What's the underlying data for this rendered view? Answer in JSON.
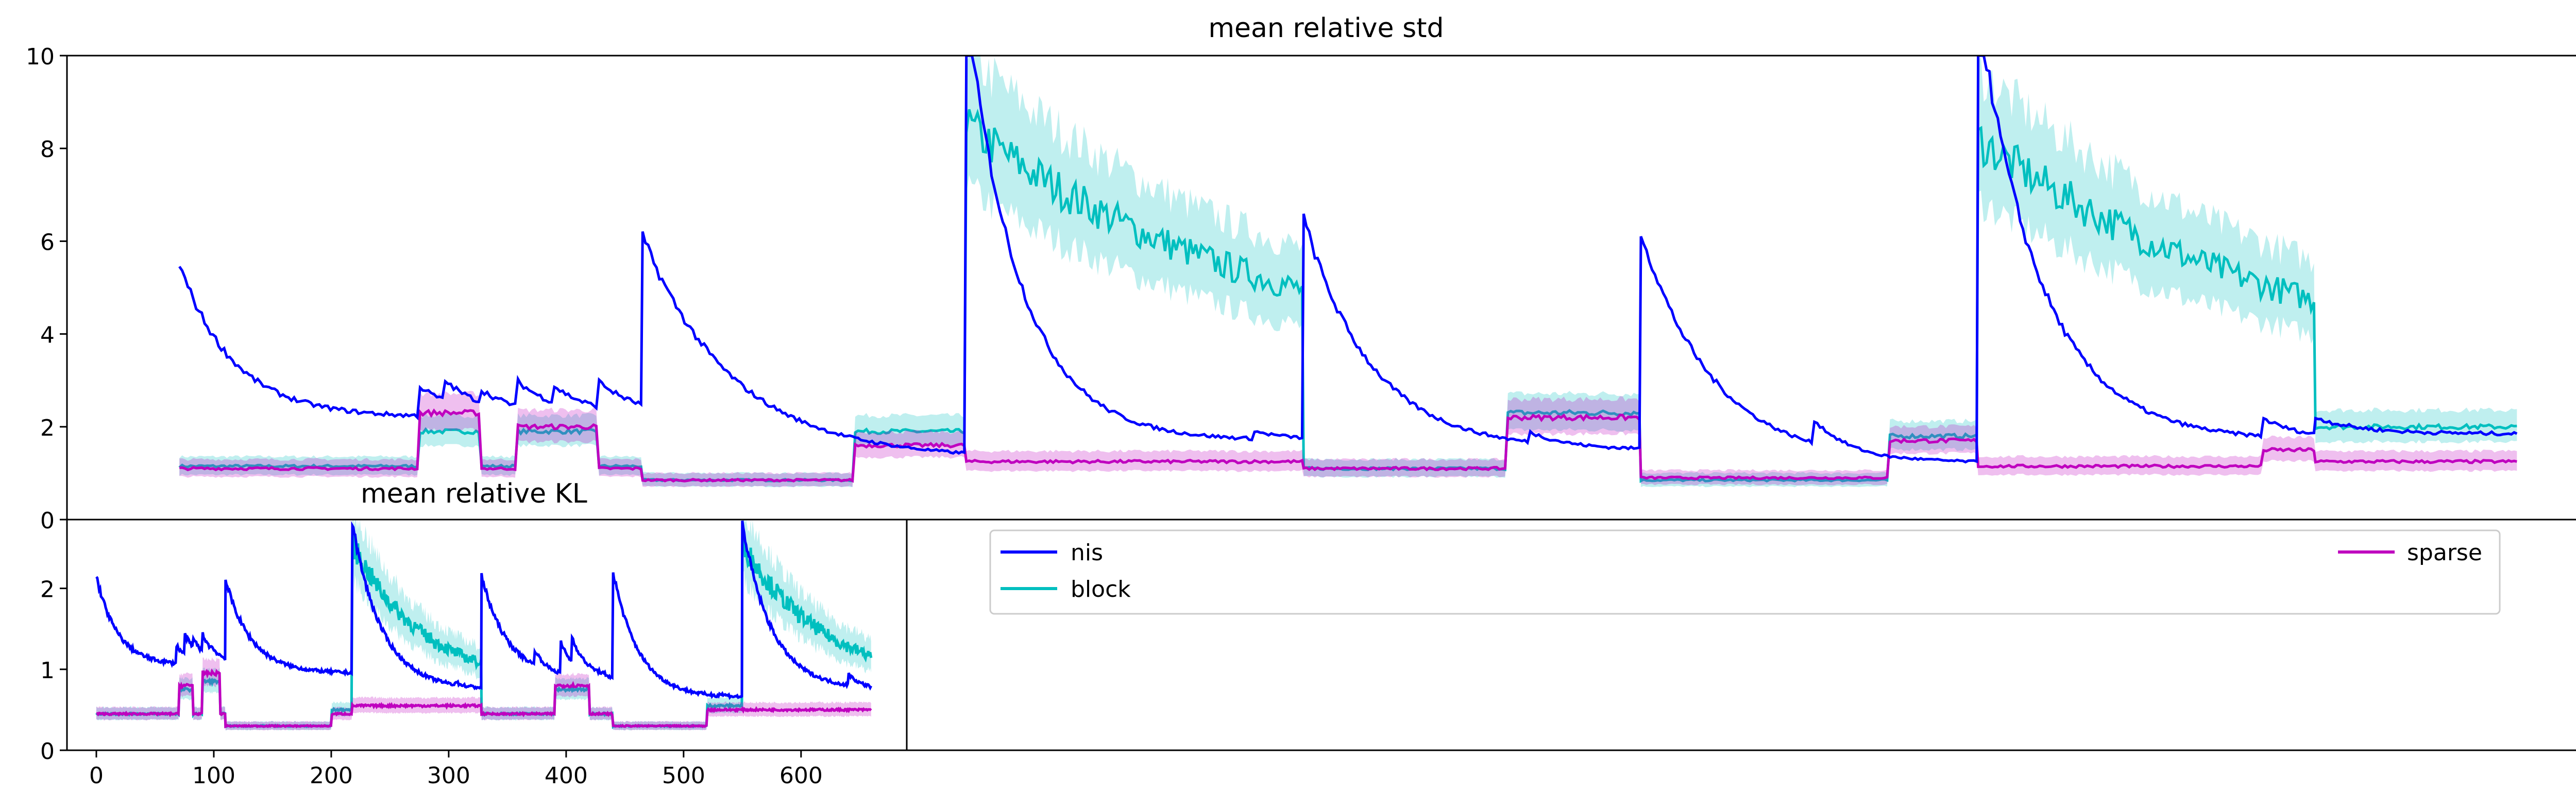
{
  "chart_data": [
    {
      "type": "line",
      "title": "mean relative std",
      "xlim": [
        0,
        560
      ],
      "ylim": [
        0,
        10
      ],
      "yticks": [
        0,
        2,
        4,
        6,
        8,
        10
      ],
      "series": [
        {
          "name": "nis",
          "color": "#0000ff"
        },
        {
          "name": "block",
          "color": "#00bfbf",
          "band": true
        },
        {
          "name": "sparse",
          "color": "#bf00bf",
          "band": true
        }
      ],
      "segments": [
        {
          "x0": 25,
          "x1": 128,
          "nis": {
            "start": 5.5,
            "floor": 2.2,
            "tau": 12,
            "peaks": [
              [
                58,
                2.4
              ],
              [
                72,
                1.8
              ],
              [
                78,
                2.9
              ],
              [
                84,
                3.0
              ],
              [
                92,
                2.8
              ],
              [
                100,
                3.0
              ],
              [
                108,
                2.9
              ],
              [
                118,
                3.0
              ],
              [
                128,
                6.1
              ]
            ]
          },
          "block": {
            "v": 1.15,
            "bumps": [
              [
                78,
                92,
                1.9
              ],
              [
                100,
                118,
                1.9
              ]
            ]
          },
          "sparse": {
            "v": 1.1,
            "bumps": [
              [
                78,
                92,
                2.3
              ],
              [
                100,
                118,
                2.0
              ]
            ]
          }
        },
        {
          "x0": 128,
          "x1": 200,
          "nis": {
            "start": 6.1,
            "floor": 1.3,
            "tau": 20,
            "peaks": []
          },
          "block": {
            "v": 0.85,
            "bumps": [
              [
                175,
                200,
                1.9
              ]
            ]
          },
          "sparse": {
            "v": 0.85,
            "bumps": [
              [
                175,
                200,
                1.6
              ]
            ]
          }
        },
        {
          "x0": 200,
          "x1": 275,
          "nis": {
            "start": 11.0,
            "floor": 1.7,
            "tau": 12,
            "peaks": [
              [
                264,
                1.9
              ]
            ]
          },
          "block": {
            "v": 8.5,
            "decay": 3.1,
            "tau": 70
          },
          "sparse": {
            "v": 1.25
          }
        },
        {
          "x0": 275,
          "x1": 350,
          "nis": {
            "start": 6.5,
            "floor": 1.5,
            "tau": 15,
            "peaks": [
              [
                325,
                1.9
              ]
            ]
          },
          "block": {
            "v": 1.1,
            "bumps": [
              [
                320,
                350,
                2.3
              ]
            ]
          },
          "sparse": {
            "v": 1.1,
            "bumps": [
              [
                320,
                350,
                2.2
              ]
            ]
          }
        },
        {
          "x0": 350,
          "x1": 425,
          "nis": {
            "start": 6.2,
            "floor": 1.2,
            "tau": 16,
            "peaks": [
              [
                388,
                2.2
              ]
            ]
          },
          "block": {
            "v": 0.85,
            "bumps": [
              [
                405,
                425,
                1.8
              ]
            ]
          },
          "sparse": {
            "v": 0.9,
            "bumps": [
              [
                405,
                425,
                1.7
              ]
            ]
          }
        },
        {
          "x0": 425,
          "x1": 500,
          "nis": {
            "start": 11.0,
            "floor": 1.7,
            "tau": 14,
            "peaks": [
              [
                488,
                2.2
              ]
            ]
          },
          "block": {
            "v": 8.2,
            "decay": 2.7,
            "tau": 75
          },
          "sparse": {
            "v": 1.15,
            "bumps": [
              [
                488,
                500,
                1.5
              ]
            ]
          }
        },
        {
          "x0": 500,
          "x1": 545,
          "nis": {
            "start": 2.2,
            "floor": 1.85,
            "tau": 10,
            "peaks": []
          },
          "block": {
            "v": 2.0
          },
          "sparse": {
            "v": 1.25
          }
        }
      ]
    },
    {
      "type": "line",
      "title": "mean relative KL",
      "xlim": [
        -25,
        690
      ],
      "ylim": [
        0,
        2.85
      ],
      "xticks": [
        0,
        100,
        200,
        300,
        400,
        500,
        600
      ],
      "yticks": [
        0,
        1,
        2
      ],
      "series": [
        {
          "name": "nis",
          "color": "#0000ff"
        },
        {
          "name": "block",
          "color": "#00bfbf",
          "band": true
        },
        {
          "name": "sparse",
          "color": "#bf00bf",
          "band": true
        }
      ],
      "segments": [
        {
          "x0": 0,
          "x1": 110,
          "nis": {
            "start": 2.15,
            "floor": 1.05,
            "tau": 18,
            "peaks": [
              [
                68,
                1.3
              ],
              [
                75,
                1.45
              ],
              [
                82,
                1.4
              ],
              [
                90,
                1.45
              ],
              [
                97,
                1.3
              ],
              [
                110,
                2.1
              ]
            ]
          },
          "block": {
            "v": 0.45,
            "bumps": [
              [
                70,
                82,
                0.75
              ],
              [
                90,
                105,
                0.85
              ]
            ]
          },
          "sparse": {
            "v": 0.45,
            "bumps": [
              [
                70,
                82,
                0.8
              ],
              [
                90,
                105,
                0.95
              ]
            ]
          }
        },
        {
          "x0": 110,
          "x1": 218,
          "nis": {
            "start": 2.1,
            "floor": 0.95,
            "tau": 22,
            "peaks": []
          },
          "block": {
            "v": 0.3,
            "bumps": [
              [
                200,
                218,
                0.5
              ]
            ]
          },
          "sparse": {
            "v": 0.3,
            "bumps": [
              [
                200,
                218,
                0.45
              ]
            ]
          }
        },
        {
          "x0": 218,
          "x1": 328,
          "nis": {
            "start": 2.8,
            "floor": 0.75,
            "tau": 25,
            "peaks": [
              [
                305,
                0.85
              ]
            ]
          },
          "block": {
            "v": 2.55,
            "decay": 0.8,
            "tau": 60
          },
          "sparse": {
            "v": 0.55
          }
        },
        {
          "x0": 328,
          "x1": 440,
          "nis": {
            "start": 2.15,
            "floor": 0.9,
            "tau": 22,
            "peaks": [
              [
                355,
                1.2
              ],
              [
                373,
                1.25
              ],
              [
                395,
                1.35
              ],
              [
                405,
                1.4
              ]
            ]
          },
          "block": {
            "v": 0.45,
            "bumps": [
              [
                390,
                420,
                0.75
              ]
            ]
          },
          "sparse": {
            "v": 0.45,
            "bumps": [
              [
                390,
                420,
                0.8
              ]
            ]
          }
        },
        {
          "x0": 440,
          "x1": 550,
          "nis": {
            "start": 2.2,
            "floor": 0.65,
            "tau": 22,
            "peaks": [
              [
                530,
                0.7
              ]
            ]
          },
          "block": {
            "v": 0.3,
            "bumps": [
              [
                520,
                550,
                0.55
              ]
            ]
          },
          "sparse": {
            "v": 0.3,
            "bumps": [
              [
                520,
                550,
                0.5
              ]
            ]
          }
        },
        {
          "x0": 550,
          "x1": 660,
          "nis": {
            "start": 2.8,
            "floor": 0.75,
            "tau": 25,
            "peaks": [
              [
                640,
                0.95
              ]
            ]
          },
          "block": {
            "v": 2.55,
            "decay": 0.8,
            "tau": 70
          },
          "sparse": {
            "v": 0.5
          }
        }
      ]
    }
  ],
  "legend": {
    "placement": "lower-right",
    "entries": [
      {
        "label": "nis",
        "color": "#0000ff"
      },
      {
        "label": "block",
        "color": "#00bfbf"
      },
      {
        "label": "sparse",
        "color": "#bf00bf"
      }
    ]
  }
}
